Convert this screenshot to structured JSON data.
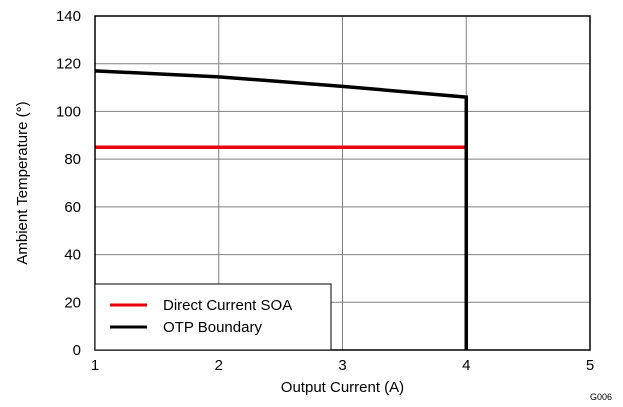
{
  "chart_data": {
    "type": "line",
    "xlabel": "Output Current (A)",
    "ylabel": "Ambient Temperature (°)",
    "xlim": [
      1,
      5
    ],
    "ylim": [
      0,
      140
    ],
    "xticks": [
      1,
      2,
      3,
      4,
      5
    ],
    "yticks": [
      0,
      20,
      40,
      60,
      80,
      100,
      120,
      140
    ],
    "grid": true,
    "legend_position": "bottom-left",
    "series": [
      {
        "name": "Direct Current SOA",
        "color": "#e8000b",
        "x": [
          1,
          4
        ],
        "y": [
          85,
          85
        ]
      },
      {
        "name": "OTP Boundary",
        "color": "#000000",
        "x": [
          1,
          2,
          3,
          4,
          4
        ],
        "y": [
          117,
          114.5,
          110.5,
          106,
          0
        ]
      }
    ],
    "annotation": "G006"
  }
}
